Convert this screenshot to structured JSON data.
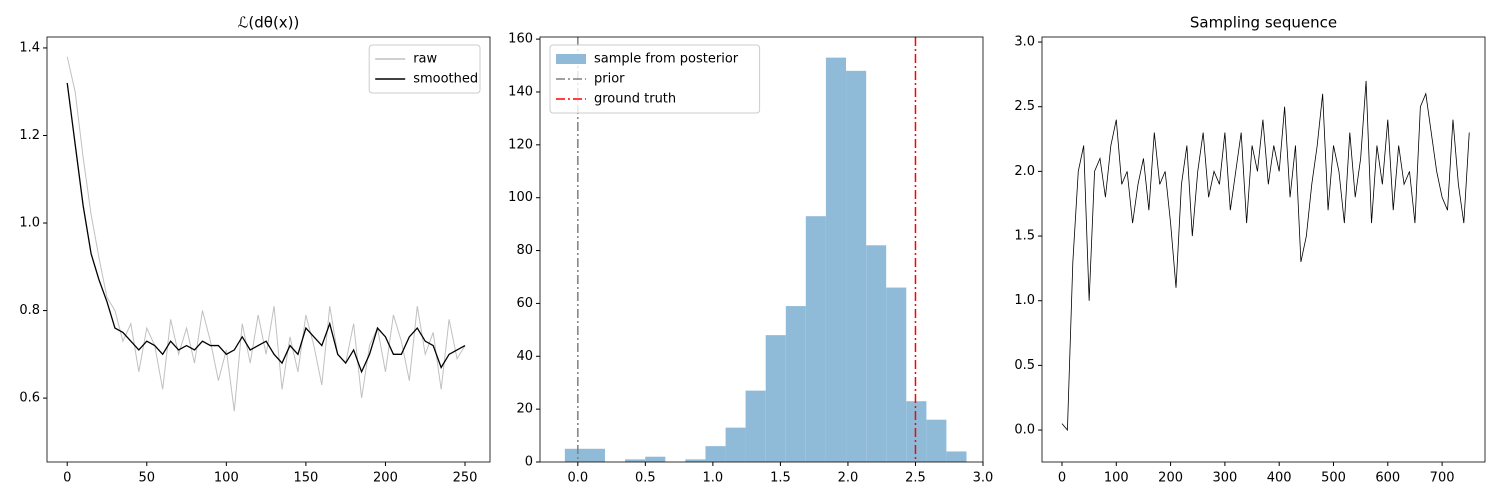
{
  "chart_data": [
    {
      "type": "line",
      "title": "ℒ(dθ(x))",
      "legend": "upper right",
      "x": [
        0,
        5,
        10,
        15,
        20,
        25,
        30,
        35,
        40,
        45,
        50,
        55,
        60,
        65,
        70,
        75,
        80,
        85,
        90,
        95,
        100,
        105,
        110,
        115,
        120,
        125,
        130,
        135,
        140,
        145,
        150,
        155,
        160,
        165,
        170,
        175,
        180,
        185,
        190,
        195,
        200,
        205,
        210,
        215,
        220,
        225,
        230,
        235,
        240,
        245,
        250
      ],
      "series": [
        {
          "name": "raw",
          "color": "#c0c0c0",
          "width": 1,
          "values": [
            1.38,
            1.3,
            1.15,
            1.02,
            0.92,
            0.83,
            0.8,
            0.73,
            0.77,
            0.66,
            0.76,
            0.72,
            0.62,
            0.78,
            0.7,
            0.76,
            0.68,
            0.8,
            0.73,
            0.64,
            0.71,
            0.57,
            0.77,
            0.68,
            0.79,
            0.7,
            0.81,
            0.62,
            0.74,
            0.66,
            0.79,
            0.72,
            0.63,
            0.81,
            0.7,
            0.68,
            0.77,
            0.6,
            0.72,
            0.76,
            0.66,
            0.79,
            0.73,
            0.64,
            0.81,
            0.7,
            0.75,
            0.62,
            0.78,
            0.69,
            0.72
          ]
        },
        {
          "name": "smoothed",
          "color": "#000000",
          "width": 1.3,
          "values": [
            1.32,
            1.18,
            1.04,
            0.93,
            0.87,
            0.82,
            0.76,
            0.75,
            0.73,
            0.71,
            0.73,
            0.72,
            0.7,
            0.73,
            0.71,
            0.72,
            0.71,
            0.73,
            0.72,
            0.72,
            0.7,
            0.71,
            0.74,
            0.71,
            0.72,
            0.73,
            0.7,
            0.68,
            0.72,
            0.7,
            0.76,
            0.74,
            0.72,
            0.77,
            0.7,
            0.68,
            0.71,
            0.66,
            0.7,
            0.76,
            0.74,
            0.7,
            0.7,
            0.74,
            0.76,
            0.73,
            0.72,
            0.67,
            0.7,
            0.71,
            0.72
          ]
        }
      ],
      "xlim": [
        -12.7,
        265.7
      ],
      "xticks": [
        0,
        50,
        100,
        150,
        200,
        250
      ],
      "ylim": [
        0.454,
        1.425
      ],
      "yticks": [
        0.6,
        0.8,
        {
          "value": 1,
          "label": "1.0"
        },
        1.2,
        1.4
      ]
    },
    {
      "type": "histogram",
      "legend": "upper left",
      "bins": [
        -0.096,
        0.053,
        0.201,
        0.35,
        0.499,
        0.648,
        0.796,
        0.945,
        1.094,
        1.242,
        1.391,
        1.54,
        1.688,
        1.837,
        1.986,
        2.135,
        2.283,
        2.432,
        2.581,
        2.729,
        2.878
      ],
      "series": [
        {
          "name": "sample from posterior",
          "color": "#8fbbd9",
          "values": [
            5,
            5,
            0,
            1,
            2,
            0,
            1,
            6,
            13,
            27,
            48,
            59,
            93,
            153,
            148,
            82,
            66,
            23,
            16,
            4
          ]
        }
      ],
      "vlines": [
        {
          "name": "prior",
          "x": 0,
          "color": "#808080"
        },
        {
          "name": "ground truth",
          "x": 2.5,
          "color": "#ff0000"
        }
      ],
      "xlim": [
        -0.28,
        3.0
      ],
      "xticks": [
        {
          "value": 0,
          "label": "0.0"
        },
        0.5,
        {
          "value": 1,
          "label": "1.0"
        },
        1.5,
        {
          "value": 2,
          "label": "2.0"
        },
        2.5,
        {
          "value": 3,
          "label": "3.0"
        }
      ],
      "ylim": [
        0,
        160.8
      ],
      "yticks": [
        0,
        20,
        40,
        60,
        80,
        100,
        120,
        140,
        160
      ]
    },
    {
      "type": "line",
      "title": "Sampling sequence",
      "x": [
        0,
        10,
        20,
        30,
        40,
        50,
        60,
        70,
        80,
        90,
        100,
        110,
        120,
        130,
        140,
        150,
        160,
        170,
        180,
        190,
        200,
        210,
        220,
        230,
        240,
        250,
        260,
        270,
        280,
        290,
        300,
        310,
        320,
        330,
        340,
        350,
        360,
        370,
        380,
        390,
        400,
        410,
        420,
        430,
        440,
        450,
        460,
        470,
        480,
        490,
        500,
        510,
        520,
        530,
        540,
        550,
        560,
        570,
        580,
        590,
        600,
        610,
        620,
        630,
        640,
        650,
        660,
        670,
        680,
        690,
        700,
        710,
        720,
        730,
        740,
        750
      ],
      "series": [
        {
          "color": "#000000",
          "width": 0.8,
          "values": [
            0.05,
            0.0,
            1.3,
            2.0,
            2.2,
            1.0,
            2.0,
            2.1,
            1.8,
            2.2,
            2.4,
            1.9,
            2.0,
            1.6,
            1.9,
            2.1,
            1.7,
            2.3,
            1.9,
            2.0,
            1.6,
            1.1,
            1.9,
            2.2,
            1.5,
            2.0,
            2.3,
            1.8,
            2.0,
            1.9,
            2.3,
            1.7,
            2.0,
            2.3,
            1.6,
            2.2,
            2.0,
            2.4,
            1.9,
            2.2,
            2.0,
            2.5,
            1.8,
            2.2,
            1.3,
            1.5,
            1.9,
            2.2,
            2.6,
            1.7,
            2.2,
            2.0,
            1.6,
            2.3,
            1.8,
            2.1,
            2.7,
            1.6,
            2.2,
            1.9,
            2.4,
            1.7,
            2.2,
            1.9,
            2.0,
            1.6,
            2.5,
            2.6,
            2.3,
            2.0,
            1.8,
            1.7,
            2.4,
            1.9,
            1.6,
            2.3
          ]
        }
      ],
      "xlim": [
        -36.8,
        779
      ],
      "xticks": [
        0,
        100,
        200,
        300,
        400,
        500,
        600,
        700
      ],
      "ylim": [
        -0.247,
        3.039
      ],
      "yticks": [
        {
          "value": 0,
          "label": "0.0"
        },
        0.5,
        {
          "value": 1,
          "label": "1.0"
        },
        1.5,
        {
          "value": 2,
          "label": "2.0"
        },
        2.5,
        {
          "value": 3,
          "label": "3.0"
        }
      ]
    }
  ]
}
